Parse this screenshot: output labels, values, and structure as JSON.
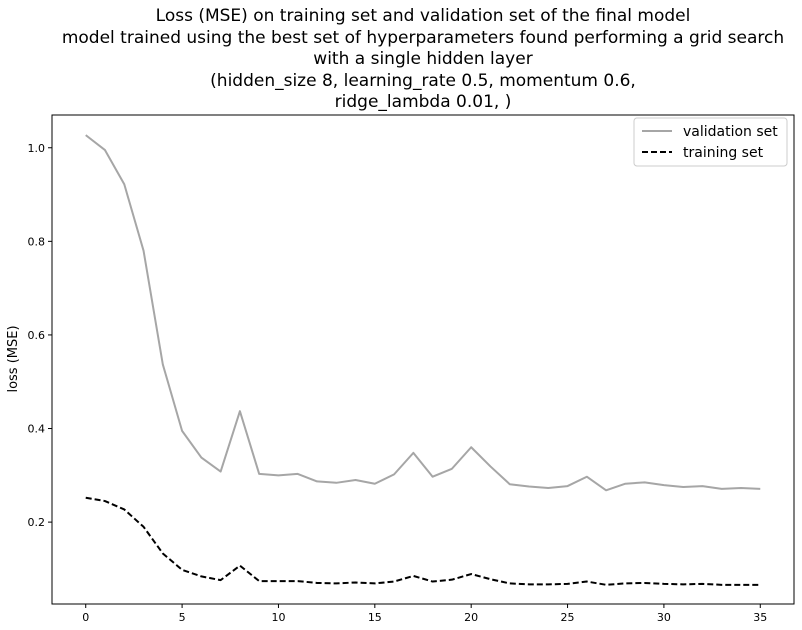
{
  "chart_data": {
    "type": "line",
    "title_lines": [
      "Loss (MSE) on training set and validation set of the final model",
      "model trained using the best set of hyperparameters found performing a grid search",
      "with a single hidden layer",
      "(hidden_size 8, learning_rate 0.5, momentum 0.6,",
      "ridge_lambda 0.01, )"
    ],
    "xlabel": "",
    "ylabel": "loss (MSE)",
    "xlim": [
      -1.75,
      36.75
    ],
    "ylim": [
      0.025,
      1.07
    ],
    "x_ticks": [
      0,
      5,
      10,
      15,
      20,
      25,
      30,
      35
    ],
    "x_tick_labels": [
      "0",
      "5",
      "10",
      "15",
      "20",
      "25",
      "30",
      "35"
    ],
    "y_ticks": [
      0.2,
      0.4,
      0.6,
      0.8,
      1.0
    ],
    "y_tick_labels": [
      "0.2",
      "0.4",
      "0.6",
      "0.8",
      "1.0"
    ],
    "grid": false,
    "legend_position": "top-right",
    "x": [
      0,
      1,
      2,
      3,
      4,
      5,
      6,
      7,
      8,
      9,
      10,
      11,
      12,
      13,
      14,
      15,
      16,
      17,
      18,
      19,
      20,
      21,
      22,
      23,
      24,
      25,
      26,
      27,
      28,
      29,
      30,
      31,
      32,
      33,
      34,
      35
    ],
    "series": [
      {
        "name": "validation set",
        "color": "#a6a6a6",
        "style": "solid",
        "values": [
          1.027,
          0.995,
          0.922,
          0.78,
          0.537,
          0.395,
          0.338,
          0.308,
          0.437,
          0.303,
          0.3,
          0.303,
          0.287,
          0.284,
          0.29,
          0.282,
          0.302,
          0.348,
          0.297,
          0.314,
          0.36,
          0.319,
          0.281,
          0.276,
          0.273,
          0.277,
          0.297,
          0.268,
          0.282,
          0.285,
          0.279,
          0.275,
          0.277,
          0.271,
          0.273,
          0.271
        ]
      },
      {
        "name": "training set",
        "color": "#000000",
        "style": "dashed",
        "values": [
          0.252,
          0.245,
          0.227,
          0.19,
          0.133,
          0.098,
          0.084,
          0.076,
          0.107,
          0.074,
          0.074,
          0.074,
          0.07,
          0.069,
          0.071,
          0.069,
          0.073,
          0.085,
          0.073,
          0.077,
          0.089,
          0.078,
          0.069,
          0.067,
          0.067,
          0.068,
          0.073,
          0.066,
          0.069,
          0.07,
          0.068,
          0.067,
          0.068,
          0.066,
          0.066,
          0.066
        ]
      }
    ]
  }
}
